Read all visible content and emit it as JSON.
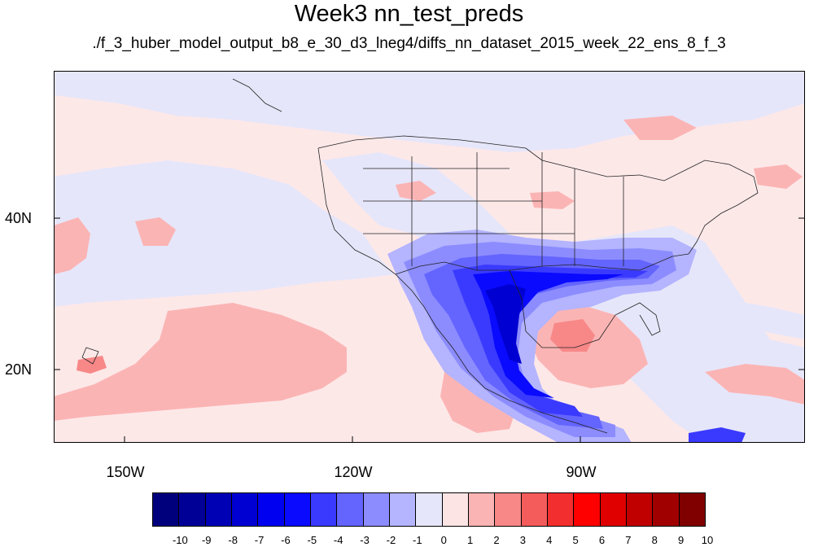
{
  "title": "Week3 nn_test_preds",
  "subtitle": "./f_3_huber_model_output_b8_e_30_d3_lneg4/diffs_nn_dataset_2015_week_22_ens_8_f_3",
  "map": {
    "latitude_labels": [
      "40N",
      "20N"
    ],
    "longitude_labels": [
      "150W",
      "120W",
      "90W"
    ]
  },
  "colorbar": {
    "labels": [
      "-10",
      "-9",
      "-8",
      "-7",
      "-6",
      "-5",
      "-4",
      "-3",
      "-2",
      "-1",
      "0",
      "1",
      "2",
      "3",
      "4",
      "5",
      "6",
      "7",
      "8",
      "9",
      "10"
    ],
    "colors": [
      "#00007d",
      "#000097",
      "#0000b4",
      "#0000d2",
      "#0000f0",
      "#0a0aff",
      "#3a3aff",
      "#6464ff",
      "#8c8cff",
      "#b4b4ff",
      "#e6e6fa",
      "#fde4e4",
      "#fbb4b4",
      "#f88888",
      "#f45b5b",
      "#f32e2e",
      "#ff0000",
      "#e00000",
      "#c00000",
      "#a00000",
      "#800000"
    ]
  }
}
